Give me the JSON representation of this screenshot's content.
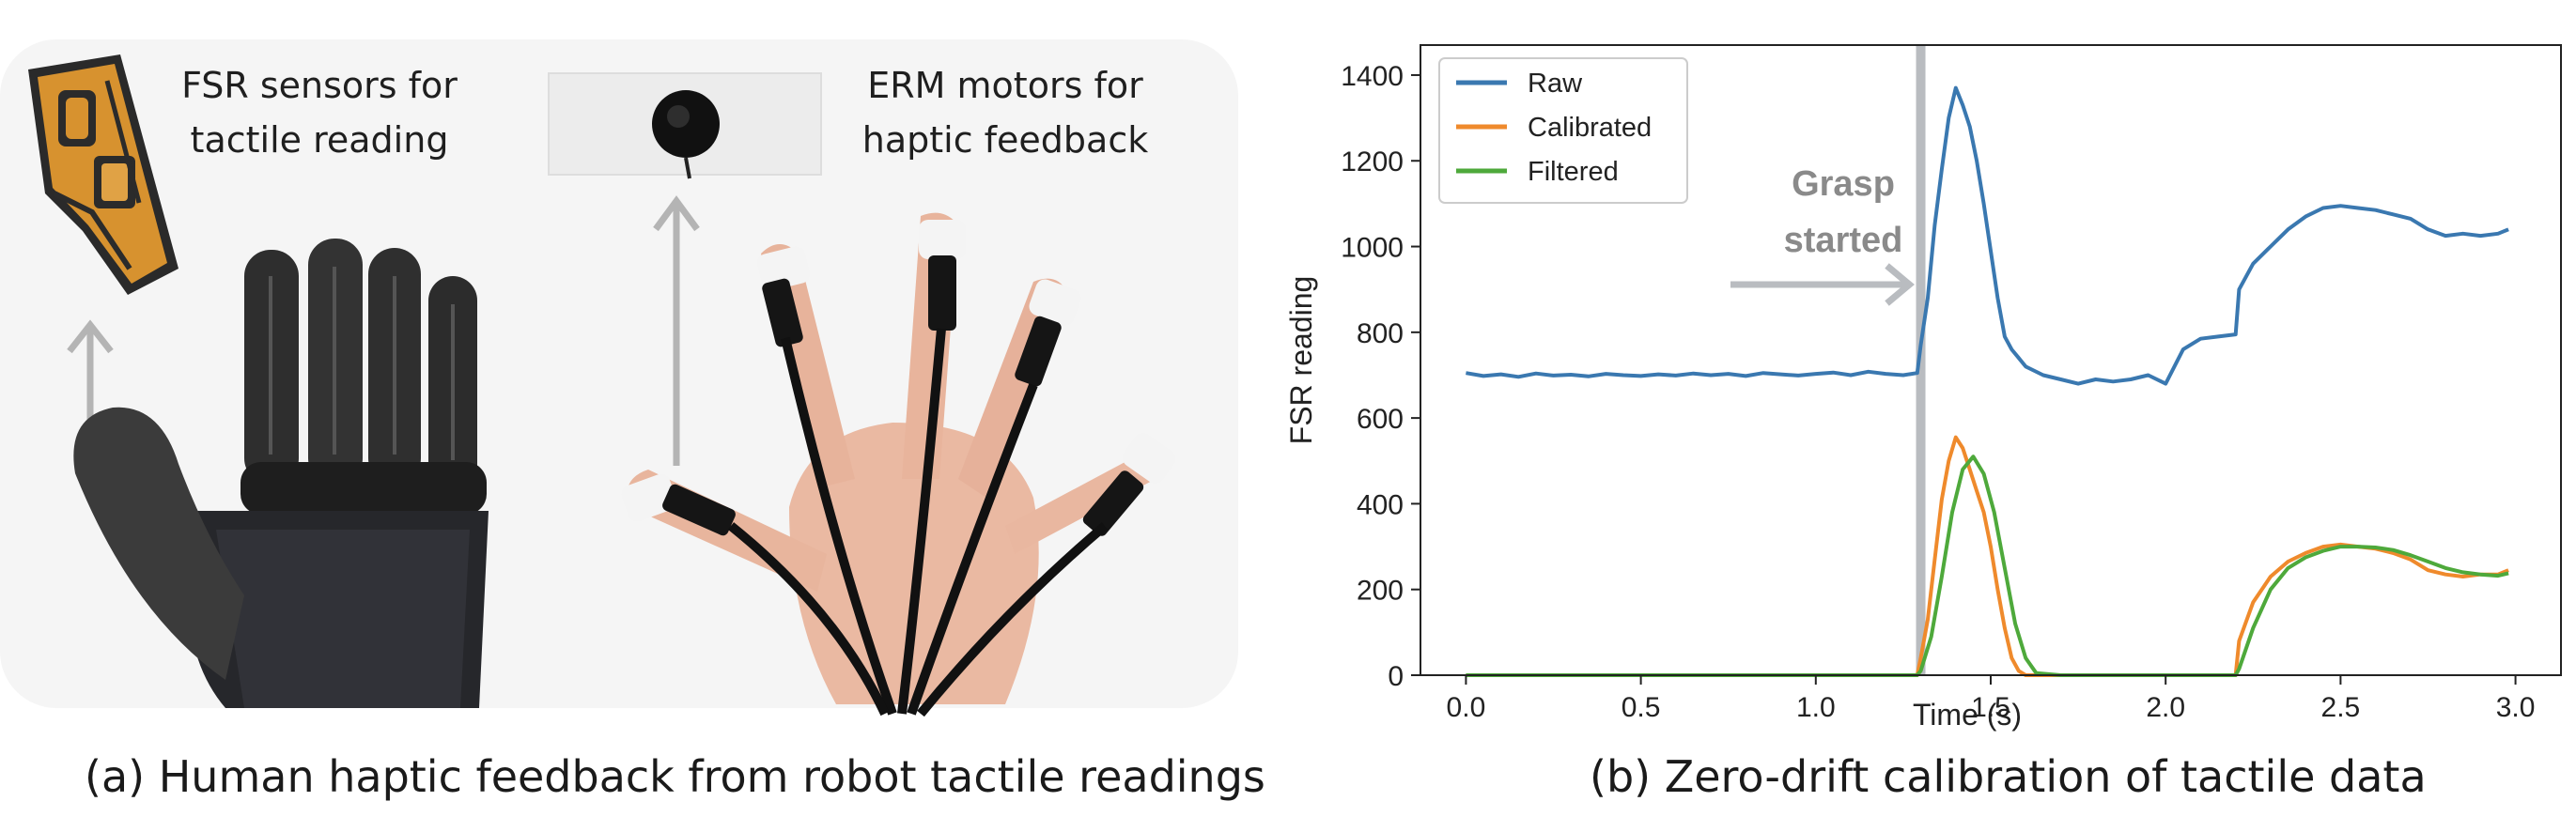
{
  "panel_a": {
    "label_fsr_line1": "FSR sensors for",
    "label_fsr_line2": "tactile reading",
    "label_erm_line1": "ERM motors for",
    "label_erm_line2": "haptic feedback",
    "caption": "(a) Human haptic feedback from robot tactile readings"
  },
  "panel_b": {
    "caption": "(b) Zero-drift calibration of tactile data"
  },
  "chart_data": {
    "type": "line",
    "xlabel": "Time (s)",
    "ylabel": "FSR reading",
    "xlim": [
      -0.13,
      3.13
    ],
    "ylim": [
      0,
      1470
    ],
    "xticks": [
      "0.0",
      "0.5",
      "1.0",
      "1.5",
      "2.0",
      "2.5",
      "3.0"
    ],
    "yticks": [
      "0",
      "200",
      "400",
      "600",
      "800",
      "1000",
      "1200",
      "1400"
    ],
    "legend_position": "top-left",
    "grid": false,
    "annotation": {
      "text_line1": "Grasp",
      "text_line2": "started",
      "x": 1.3
    },
    "series": [
      {
        "name": "Raw",
        "color": "#3a78b0",
        "x": [
          0.0,
          0.05,
          0.1,
          0.15,
          0.2,
          0.25,
          0.3,
          0.35,
          0.4,
          0.45,
          0.5,
          0.55,
          0.6,
          0.65,
          0.7,
          0.75,
          0.8,
          0.85,
          0.9,
          0.95,
          1.0,
          1.05,
          1.1,
          1.15,
          1.2,
          1.25,
          1.29,
          1.3,
          1.32,
          1.34,
          1.36,
          1.38,
          1.4,
          1.42,
          1.44,
          1.46,
          1.48,
          1.5,
          1.52,
          1.54,
          1.56,
          1.58,
          1.6,
          1.65,
          1.7,
          1.75,
          1.8,
          1.85,
          1.9,
          1.95,
          2.0,
          2.05,
          2.1,
          2.15,
          2.2,
          2.21,
          2.25,
          2.3,
          2.35,
          2.4,
          2.45,
          2.5,
          2.55,
          2.6,
          2.65,
          2.7,
          2.75,
          2.8,
          2.85,
          2.9,
          2.95,
          2.98
        ],
        "y": [
          705,
          698,
          702,
          696,
          704,
          699,
          701,
          697,
          703,
          700,
          698,
          702,
          699,
          704,
          700,
          703,
          698,
          705,
          702,
          699,
          703,
          706,
          700,
          708,
          703,
          700,
          705,
          770,
          880,
          1050,
          1180,
          1300,
          1370,
          1330,
          1280,
          1200,
          1100,
          990,
          880,
          790,
          760,
          740,
          720,
          700,
          690,
          680,
          690,
          685,
          690,
          700,
          680,
          760,
          785,
          790,
          795,
          900,
          960,
          1000,
          1040,
          1070,
          1090,
          1095,
          1090,
          1085,
          1075,
          1065,
          1040,
          1025,
          1030,
          1025,
          1030,
          1040
        ]
      },
      {
        "name": "Calibrated",
        "color": "#ef8a2c",
        "x": [
          0.0,
          0.5,
          1.0,
          1.29,
          1.3,
          1.32,
          1.34,
          1.36,
          1.38,
          1.4,
          1.42,
          1.44,
          1.46,
          1.48,
          1.5,
          1.52,
          1.54,
          1.56,
          1.58,
          1.6,
          1.65,
          1.7,
          1.8,
          1.9,
          2.0,
          2.1,
          2.2,
          2.21,
          2.25,
          2.3,
          2.35,
          2.4,
          2.45,
          2.5,
          2.55,
          2.6,
          2.65,
          2.7,
          2.75,
          2.8,
          2.85,
          2.9,
          2.95,
          2.98
        ],
        "y": [
          0,
          0,
          0,
          0,
          40,
          130,
          270,
          410,
          500,
          555,
          530,
          480,
          430,
          380,
          300,
          200,
          110,
          40,
          10,
          0,
          0,
          0,
          0,
          0,
          0,
          0,
          0,
          80,
          170,
          230,
          265,
          285,
          300,
          305,
          300,
          295,
          285,
          270,
          245,
          235,
          230,
          235,
          235,
          245
        ]
      },
      {
        "name": "Filtered",
        "color": "#4ea93b",
        "x": [
          0.0,
          0.5,
          1.0,
          1.29,
          1.3,
          1.33,
          1.36,
          1.39,
          1.42,
          1.45,
          1.48,
          1.51,
          1.54,
          1.57,
          1.6,
          1.63,
          1.7,
          1.8,
          1.9,
          2.0,
          2.1,
          2.2,
          2.21,
          2.25,
          2.3,
          2.35,
          2.4,
          2.45,
          2.5,
          2.55,
          2.6,
          2.65,
          2.7,
          2.75,
          2.8,
          2.85,
          2.9,
          2.95,
          2.98
        ],
        "y": [
          0,
          0,
          0,
          0,
          10,
          90,
          230,
          380,
          480,
          510,
          470,
          380,
          250,
          120,
          40,
          5,
          0,
          0,
          0,
          0,
          0,
          0,
          15,
          110,
          200,
          250,
          275,
          290,
          300,
          300,
          298,
          292,
          280,
          265,
          250,
          240,
          235,
          232,
          238
        ]
      }
    ]
  }
}
